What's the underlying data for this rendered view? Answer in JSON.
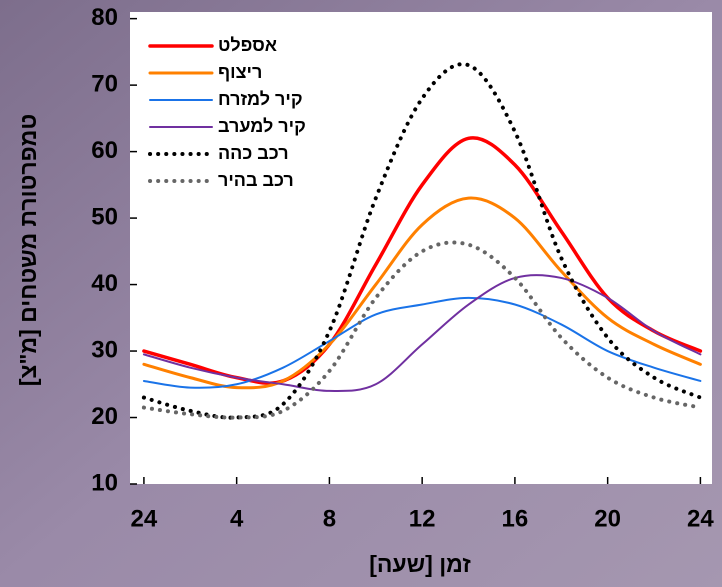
{
  "chart_data": {
    "type": "line",
    "x_label": "זמן [שעה]",
    "y_label": "טמפרטורת משטחים [מ\"צ]",
    "x": [
      0,
      2,
      4,
      6,
      8,
      10,
      12,
      14,
      16,
      18,
      20,
      22,
      24
    ],
    "xlim": [
      -0.6,
      24.5
    ],
    "xticks": [
      {
        "value": 0,
        "label": "24"
      },
      4,
      8,
      12,
      16,
      20,
      {
        "value": 24,
        "label": "24"
      }
    ],
    "ylim": [
      10,
      81
    ],
    "yticks": [
      10,
      20,
      30,
      40,
      50,
      60,
      70,
      80
    ],
    "grid": false,
    "legend": "upper-left",
    "series": [
      {
        "name": "אספלט",
        "color": "#ff0000",
        "style": "solid",
        "width": 3.5,
        "values": [
          30,
          28,
          26,
          25.5,
          31,
          43,
          55,
          62,
          58,
          48,
          38,
          33,
          30
        ]
      },
      {
        "name": "ריצוף",
        "color": "#ff8000",
        "style": "solid",
        "width": 3,
        "values": [
          28,
          26,
          24.5,
          25.5,
          31,
          40,
          49,
          53,
          50,
          42,
          35,
          31,
          28
        ]
      },
      {
        "name": "קיר למזרח",
        "color": "#1a73e8",
        "style": "solid",
        "width": 2,
        "values": [
          25.5,
          24.5,
          25,
          27.5,
          31.5,
          35.5,
          37,
          38,
          37,
          34,
          30,
          27.5,
          25.5
        ]
      },
      {
        "name": "קיר למערב",
        "color": "#7030a0",
        "style": "solid",
        "width": 2,
        "values": [
          29.5,
          27.5,
          26,
          25,
          24,
          25,
          31,
          37,
          41,
          41,
          38,
          33,
          29.5
        ]
      },
      {
        "name": "רכב כהה",
        "color": "#000000",
        "style": "dotted",
        "width": 4,
        "values": [
          23,
          21,
          20,
          22,
          33,
          53,
          68,
          73,
          63,
          44,
          32,
          26,
          23
        ]
      },
      {
        "name": "רכב בהיר",
        "color": "#666666",
        "style": "dotted",
        "width": 4,
        "values": [
          21.5,
          20.5,
          20,
          21,
          27,
          38,
          45,
          46,
          41,
          32,
          26,
          23,
          21.5
        ]
      }
    ]
  }
}
